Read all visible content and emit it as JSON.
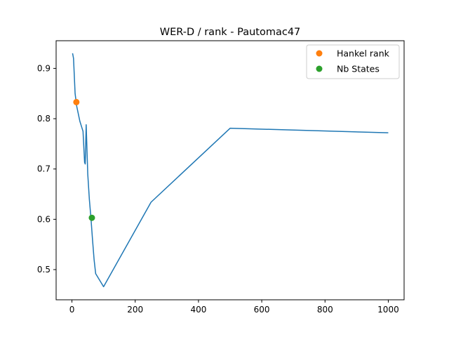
{
  "chart_data": {
    "type": "line",
    "title": "WER-D / rank - Pautomac47",
    "xlabel": "",
    "ylabel": "",
    "xlim": [
      -50,
      1050
    ],
    "ylim": [
      0.44,
      0.955
    ],
    "xticks": [
      0,
      200,
      400,
      600,
      800,
      1000
    ],
    "yticks": [
      0.5,
      0.6,
      0.7,
      0.8,
      0.9
    ],
    "xtick_labels": [
      "0",
      "200",
      "400",
      "600",
      "800",
      "1000"
    ],
    "ytick_labels": [
      "0.5",
      "0.6",
      "0.7",
      "0.8",
      "0.9"
    ],
    "grid": false,
    "legend_position": "top-right",
    "series": [
      {
        "color": "#1f77b4",
        "x": [
          2,
          5,
          10,
          15,
          20,
          25,
          30,
          35,
          40,
          42,
          45,
          50,
          55,
          60,
          65,
          70,
          75,
          100,
          250,
          500,
          1000
        ],
        "y": [
          0.93,
          0.92,
          0.85,
          0.825,
          0.81,
          0.795,
          0.785,
          0.775,
          0.713,
          0.71,
          0.788,
          0.69,
          0.64,
          0.603,
          0.56,
          0.52,
          0.492,
          0.466,
          0.634,
          0.781,
          0.772
        ]
      }
    ],
    "markers": [
      {
        "name": "Hankel rank",
        "x": 14,
        "y": 0.833,
        "color": "#ff7f0e"
      },
      {
        "name": "Nb States",
        "x": 63,
        "y": 0.603,
        "color": "#2ca02c"
      }
    ]
  }
}
